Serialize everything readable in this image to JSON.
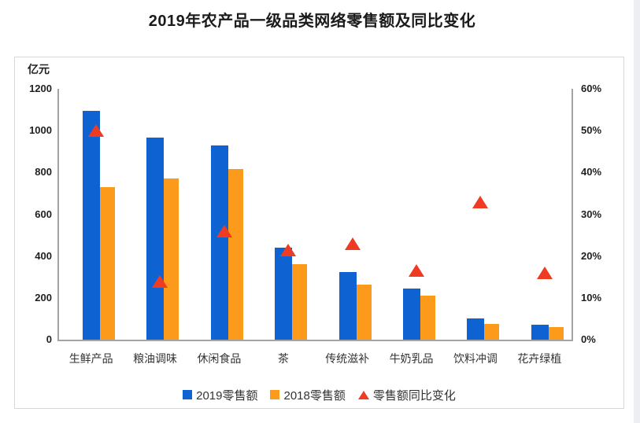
{
  "page": {
    "title": "2019年农产品一级品类网络零售额及同比变化"
  },
  "colors": {
    "bar_2019": "#0f62d2",
    "bar_2018": "#fb9a1b",
    "growth_marker": "#ef3b22",
    "axis_line": "#a3a3a3",
    "tick_text": "#1f1f1f"
  },
  "chart_data": {
    "type": "bar",
    "title": "2019年农产品一级品类网络零售额及同比变化",
    "categories": [
      "生鲜产品",
      "粮油调味",
      "休闲食品",
      "茶",
      "传统滋补",
      "牛奶乳品",
      "饮料冲调",
      "花卉绿植"
    ],
    "series": [
      {
        "name": "2019零售额",
        "type": "bar",
        "axis": "left",
        "color": "#0f62d2",
        "values": [
          1095,
          965,
          930,
          440,
          325,
          245,
          100,
          70
        ]
      },
      {
        "name": "2018零售额",
        "type": "bar",
        "axis": "left",
        "color": "#fb9a1b",
        "values": [
          730,
          770,
          815,
          360,
          265,
          210,
          75,
          60
        ]
      },
      {
        "name": "零售额同比变化",
        "type": "scatter",
        "marker": "triangle",
        "axis": "right",
        "color": "#ef3b22",
        "values": [
          50,
          14,
          26,
          21.5,
          23,
          16.5,
          33,
          16
        ]
      }
    ],
    "left_axis": {
      "label": "亿元",
      "min": 0,
      "max": 1200,
      "ticks": [
        0,
        200,
        400,
        600,
        800,
        1000,
        1200
      ]
    },
    "right_axis": {
      "unit": "%",
      "min": 0,
      "max": 60,
      "ticks": [
        0,
        10,
        20,
        30,
        40,
        50,
        60
      ]
    },
    "grid": false,
    "legend_position": "bottom"
  }
}
